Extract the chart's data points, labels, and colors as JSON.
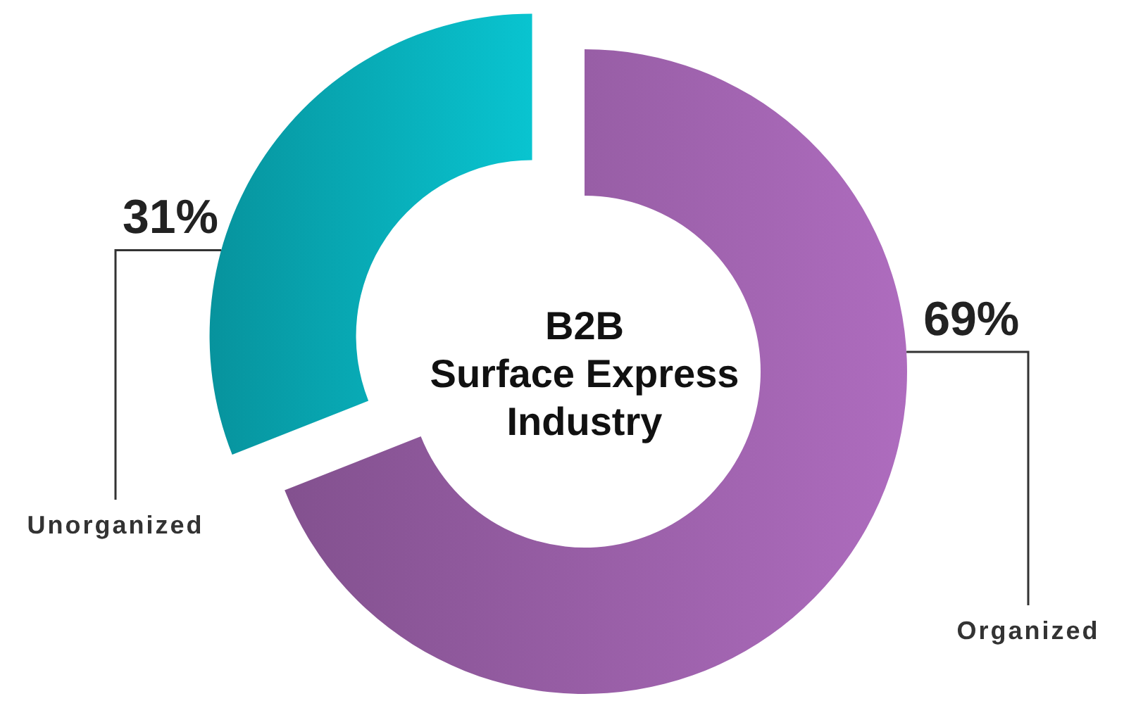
{
  "chart_data": {
    "type": "donut",
    "title": "B2B\nSurface Express\nIndustry",
    "categories": [
      "Organized",
      "Unorganized"
    ],
    "values": [
      69,
      31
    ],
    "colors": [
      "#9a5fa8",
      "#08adb8"
    ],
    "value_labels": [
      "69%",
      "31%"
    ]
  }
}
